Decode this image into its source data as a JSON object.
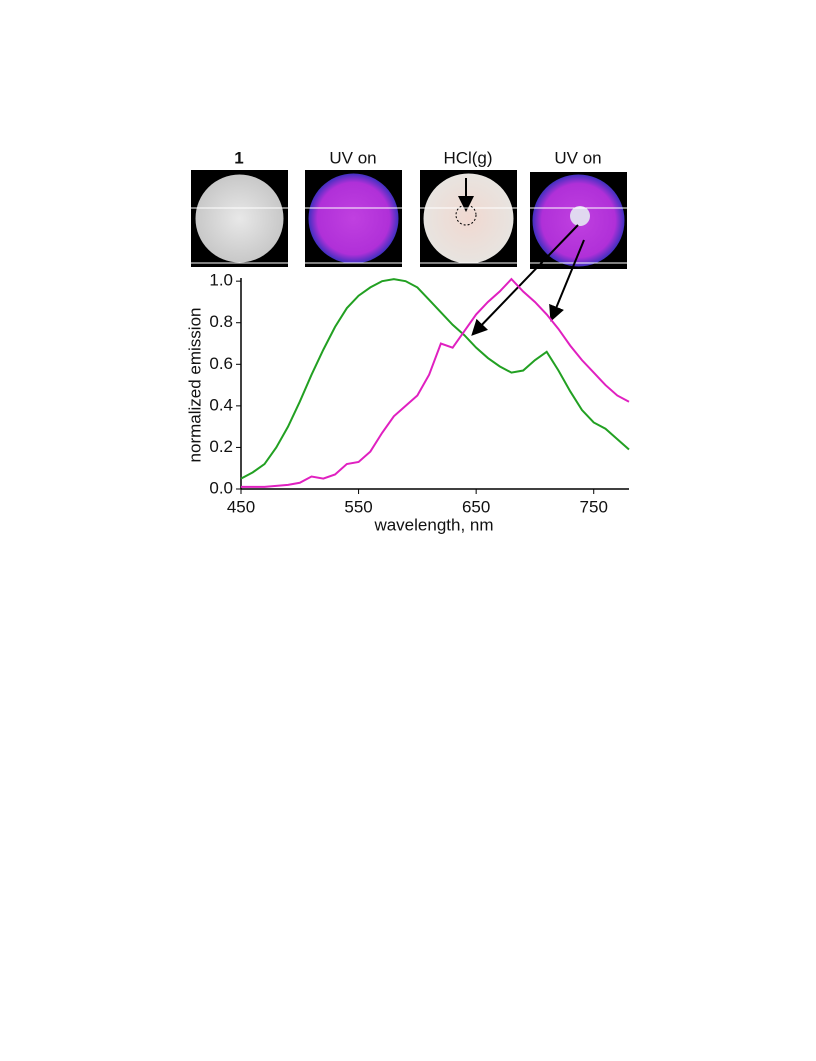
{
  "panels": [
    {
      "label": "1"
    },
    {
      "label": "UV on"
    },
    {
      "label": "HCl(g)"
    },
    {
      "label": "UV on"
    }
  ],
  "chart_data": {
    "type": "line",
    "x_label": "wavelength, nm",
    "y_label": "normalized emission",
    "x": [
      450,
      460,
      470,
      480,
      490,
      500,
      510,
      520,
      530,
      540,
      550,
      560,
      570,
      580,
      590,
      600,
      610,
      620,
      630,
      640,
      650,
      660,
      670,
      680,
      690,
      700,
      710,
      720,
      730,
      740,
      750,
      760,
      770,
      780
    ],
    "series": [
      {
        "color": "#22a022",
        "values": [
          0.05,
          0.08,
          0.12,
          0.2,
          0.3,
          0.42,
          0.55,
          0.67,
          0.78,
          0.87,
          0.93,
          0.97,
          1.0,
          1.01,
          1.0,
          0.97,
          0.91,
          0.85,
          0.79,
          0.74,
          0.68,
          0.63,
          0.59,
          0.56,
          0.57,
          0.62,
          0.66,
          0.57,
          0.47,
          0.38,
          0.32,
          0.29,
          0.24,
          0.19
        ]
      },
      {
        "color": "#e020c0",
        "values": [
          0.01,
          0.01,
          0.01,
          0.015,
          0.02,
          0.03,
          0.06,
          0.05,
          0.07,
          0.12,
          0.13,
          0.18,
          0.27,
          0.35,
          0.4,
          0.45,
          0.55,
          0.7,
          0.68,
          0.76,
          0.84,
          0.9,
          0.95,
          1.01,
          0.95,
          0.9,
          0.84,
          0.77,
          0.69,
          0.62,
          0.56,
          0.5,
          0.45,
          0.42
        ]
      }
    ],
    "xlim": [
      450,
      780
    ],
    "ylim": [
      0,
      1.02
    ],
    "xticks": [
      450,
      550,
      650,
      750
    ],
    "yticks": [
      {
        "value": 0,
        "label": "0.0"
      },
      0.2,
      0.4,
      0.6,
      0.8,
      {
        "value": 1,
        "label": "1.0"
      }
    ]
  }
}
